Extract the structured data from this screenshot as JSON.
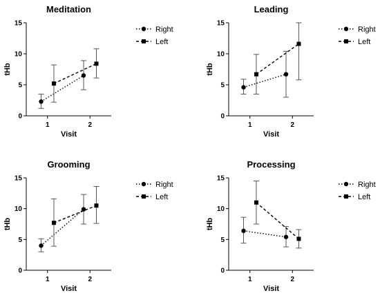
{
  "chart_data": [
    {
      "type": "line",
      "title": "Meditation",
      "xlabel": "Visit",
      "ylabel": "tHb",
      "ylim": [
        0,
        15
      ],
      "yticks": [
        0,
        5,
        10,
        15
      ],
      "xticks": [
        1,
        2
      ],
      "series": [
        {
          "name": "Right",
          "style": "dotted",
          "marker": "circle",
          "x": [
            0.85,
            1.85
          ],
          "y": [
            2.3,
            6.5
          ],
          "err_low": [
            1.2,
            4.2
          ],
          "err_high": [
            3.5,
            8.9
          ]
        },
        {
          "name": "Left",
          "style": "dashed",
          "marker": "square",
          "x": [
            1.15,
            2.15
          ],
          "y": [
            5.2,
            8.4
          ],
          "err_low": [
            2.2,
            6.1
          ],
          "err_high": [
            8.2,
            10.8
          ]
        }
      ]
    },
    {
      "type": "line",
      "title": "Leading",
      "xlabel": "Visit",
      "ylabel": "tHb",
      "ylim": [
        0,
        15
      ],
      "yticks": [
        0,
        5,
        10,
        15
      ],
      "xticks": [
        1,
        2
      ],
      "series": [
        {
          "name": "Right",
          "style": "dotted",
          "marker": "circle",
          "x": [
            0.85,
            1.85
          ],
          "y": [
            4.6,
            6.7
          ],
          "err_low": [
            3.5,
            3.0
          ],
          "err_high": [
            5.9,
            10.4
          ]
        },
        {
          "name": "Left",
          "style": "dashed",
          "marker": "square",
          "x": [
            1.15,
            2.15
          ],
          "y": [
            6.7,
            11.6
          ],
          "err_low": [
            3.5,
            5.8
          ],
          "err_high": [
            9.9,
            15.0
          ]
        }
      ]
    },
    {
      "type": "line",
      "title": "Grooming",
      "xlabel": "Visit",
      "ylabel": "tHb",
      "ylim": [
        0,
        15
      ],
      "yticks": [
        0,
        5,
        10,
        15
      ],
      "xticks": [
        1,
        2
      ],
      "series": [
        {
          "name": "Right",
          "style": "dotted",
          "marker": "circle",
          "x": [
            0.85,
            1.85
          ],
          "y": [
            4.0,
            9.9
          ],
          "err_low": [
            3.0,
            7.5
          ],
          "err_high": [
            5.1,
            12.3
          ]
        },
        {
          "name": "Left",
          "style": "dashed",
          "marker": "square",
          "x": [
            1.15,
            2.15
          ],
          "y": [
            7.7,
            10.5
          ],
          "err_low": [
            3.9,
            7.6
          ],
          "err_high": [
            11.6,
            13.6
          ]
        }
      ]
    },
    {
      "type": "line",
      "title": "Processing",
      "xlabel": "Visit",
      "ylabel": "tHb",
      "ylim": [
        0,
        15
      ],
      "yticks": [
        0,
        5,
        10,
        15
      ],
      "xticks": [
        1,
        2
      ],
      "series": [
        {
          "name": "Right",
          "style": "dotted",
          "marker": "circle",
          "x": [
            0.85,
            1.85
          ],
          "y": [
            6.4,
            5.4
          ],
          "err_low": [
            4.4,
            3.8
          ],
          "err_high": [
            8.6,
            7.1
          ]
        },
        {
          "name": "Left",
          "style": "dashed",
          "marker": "square",
          "x": [
            1.15,
            2.15
          ],
          "y": [
            11.0,
            5.1
          ],
          "err_low": [
            7.5,
            3.6
          ],
          "err_high": [
            14.5,
            6.6
          ]
        }
      ]
    }
  ]
}
